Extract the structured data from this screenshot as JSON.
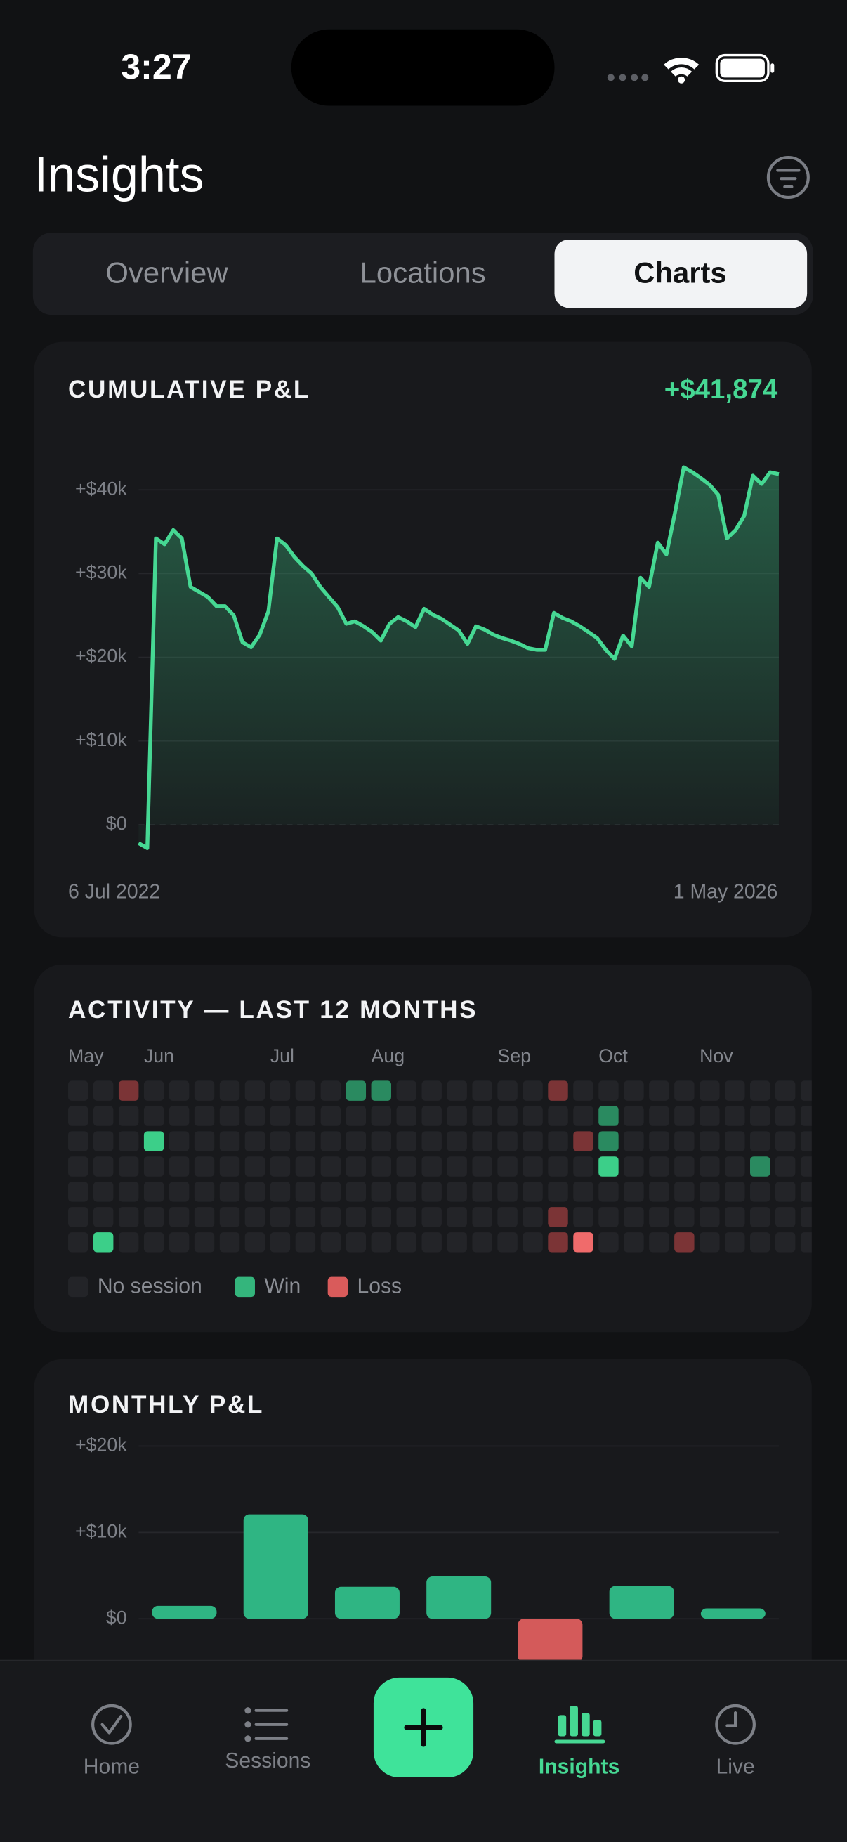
{
  "status_bar": {
    "time": "3:27"
  },
  "header": {
    "title": "Insights"
  },
  "tabs": {
    "items": [
      "Overview",
      "Locations",
      "Charts"
    ],
    "active": 2
  },
  "cumulative_pnl": {
    "type": "line",
    "title": "CUMULATIVE P&L",
    "total": "+$41,874",
    "color": "#46d893",
    "values": [
      -2200,
      -2800,
      34200,
      33500,
      35200,
      34200,
      28400,
      27800,
      27200,
      26100,
      26100,
      25000,
      21800,
      21200,
      22700,
      25500,
      34200,
      33400,
      32000,
      30900,
      30000,
      28400,
      27200,
      26000,
      24000,
      24300,
      23700,
      23000,
      22000,
      24000,
      24800,
      24300,
      23600,
      25800,
      25100,
      24600,
      23900,
      23200,
      21600,
      23700,
      23300,
      22700,
      22300,
      22000,
      21600,
      21100,
      20900,
      20900,
      25300,
      24700,
      24300,
      23700,
      23000,
      22300,
      20900,
      19800,
      22600,
      21300,
      29500,
      28400,
      33700,
      32300,
      37300,
      42700,
      42100,
      41400,
      40600,
      39400,
      34200,
      35200,
      36900,
      41700,
      40700,
      42100,
      41874
    ],
    "ylim": [
      -4000,
      44000
    ],
    "yticks": [
      {
        "value": 0,
        "label": "$0"
      },
      {
        "value": 10000,
        "label": "+$10k"
      },
      {
        "value": 20000,
        "label": "+$20k"
      },
      {
        "value": 30000,
        "label": "+$30k"
      },
      {
        "value": 40000,
        "label": "+$40k"
      }
    ],
    "x_start": "6 Jul 2022",
    "x_end": "1 May 2026"
  },
  "activity": {
    "title": "ACTIVITY — LAST 12 MONTHS",
    "week_labels": [
      "May",
      null,
      null,
      "Jun",
      null,
      null,
      null,
      null,
      "Jul",
      null,
      null,
      null,
      "Aug",
      null,
      null,
      null,
      null,
      "Sep",
      null,
      null,
      null,
      "Oct",
      null,
      null,
      null,
      "Nov",
      null,
      null,
      null,
      null
    ],
    "weeks": [
      [
        0,
        0,
        0,
        0,
        0,
        0,
        0
      ],
      [
        0,
        0,
        0,
        0,
        0,
        0,
        2
      ],
      [
        -1,
        0,
        0,
        0,
        0,
        0,
        0
      ],
      [
        0,
        0,
        2,
        0,
        0,
        0,
        0
      ],
      [
        0,
        0,
        0,
        0,
        0,
        0,
        0
      ],
      [
        0,
        0,
        0,
        0,
        0,
        0,
        0
      ],
      [
        0,
        0,
        0,
        0,
        0,
        0,
        0
      ],
      [
        0,
        0,
        0,
        0,
        0,
        0,
        0
      ],
      [
        0,
        0,
        0,
        0,
        0,
        0,
        0
      ],
      [
        0,
        0,
        0,
        0,
        0,
        0,
        0
      ],
      [
        0,
        0,
        0,
        0,
        0,
        0,
        0
      ],
      [
        1,
        0,
        0,
        0,
        0,
        0,
        0
      ],
      [
        1,
        0,
        0,
        0,
        0,
        0,
        0
      ],
      [
        0,
        0,
        0,
        0,
        0,
        0,
        0
      ],
      [
        0,
        0,
        0,
        0,
        0,
        0,
        0
      ],
      [
        0,
        0,
        0,
        0,
        0,
        0,
        0
      ],
      [
        0,
        0,
        0,
        0,
        0,
        0,
        0
      ],
      [
        0,
        0,
        0,
        0,
        0,
        0,
        0
      ],
      [
        0,
        0,
        0,
        0,
        0,
        0,
        0
      ],
      [
        -1,
        0,
        0,
        0,
        0,
        -1,
        -1
      ],
      [
        0,
        0,
        -1,
        0,
        0,
        0,
        -2
      ],
      [
        0,
        1,
        1,
        2,
        0,
        0,
        0
      ],
      [
        0,
        0,
        0,
        0,
        0,
        0,
        0
      ],
      [
        0,
        0,
        0,
        0,
        0,
        0,
        0
      ],
      [
        0,
        0,
        0,
        0,
        0,
        0,
        -1
      ],
      [
        0,
        0,
        0,
        0,
        0,
        0,
        0
      ],
      [
        0,
        0,
        0,
        0,
        0,
        0,
        0
      ],
      [
        0,
        0,
        0,
        1,
        0,
        0,
        0
      ],
      [
        0,
        0,
        0,
        0,
        0,
        0,
        0
      ],
      [
        0,
        0,
        0,
        0,
        0,
        0,
        0
      ]
    ],
    "colors": {
      "-2": "#f06b6b",
      "-1": "#7b3436",
      "0": "#232428",
      "1": "#2a8a60",
      "2": "#3ccf89"
    },
    "legend": [
      {
        "name": "No session",
        "color": "#232428"
      },
      {
        "name": "Win",
        "color": "#34b57c"
      },
      {
        "name": "Loss",
        "color": "#d95b5b"
      }
    ]
  },
  "monthly_pnl": {
    "type": "bar",
    "title": "MONTHLY P&L",
    "values": [
      1500,
      12100,
      3700,
      4900,
      -5000,
      3800,
      1200
    ],
    "colors": {
      "positive": "#2fb583",
      "negative": "#d45a5a"
    },
    "ylim": [
      -8000,
      20000
    ],
    "yticks": [
      {
        "value": 0,
        "label": "$0"
      },
      {
        "value": 10000,
        "label": "+$10k"
      },
      {
        "value": 20000,
        "label": "+$20k"
      }
    ]
  },
  "nav": {
    "items": [
      "Home",
      "Sessions",
      "Insights",
      "Live"
    ],
    "active": 2
  }
}
